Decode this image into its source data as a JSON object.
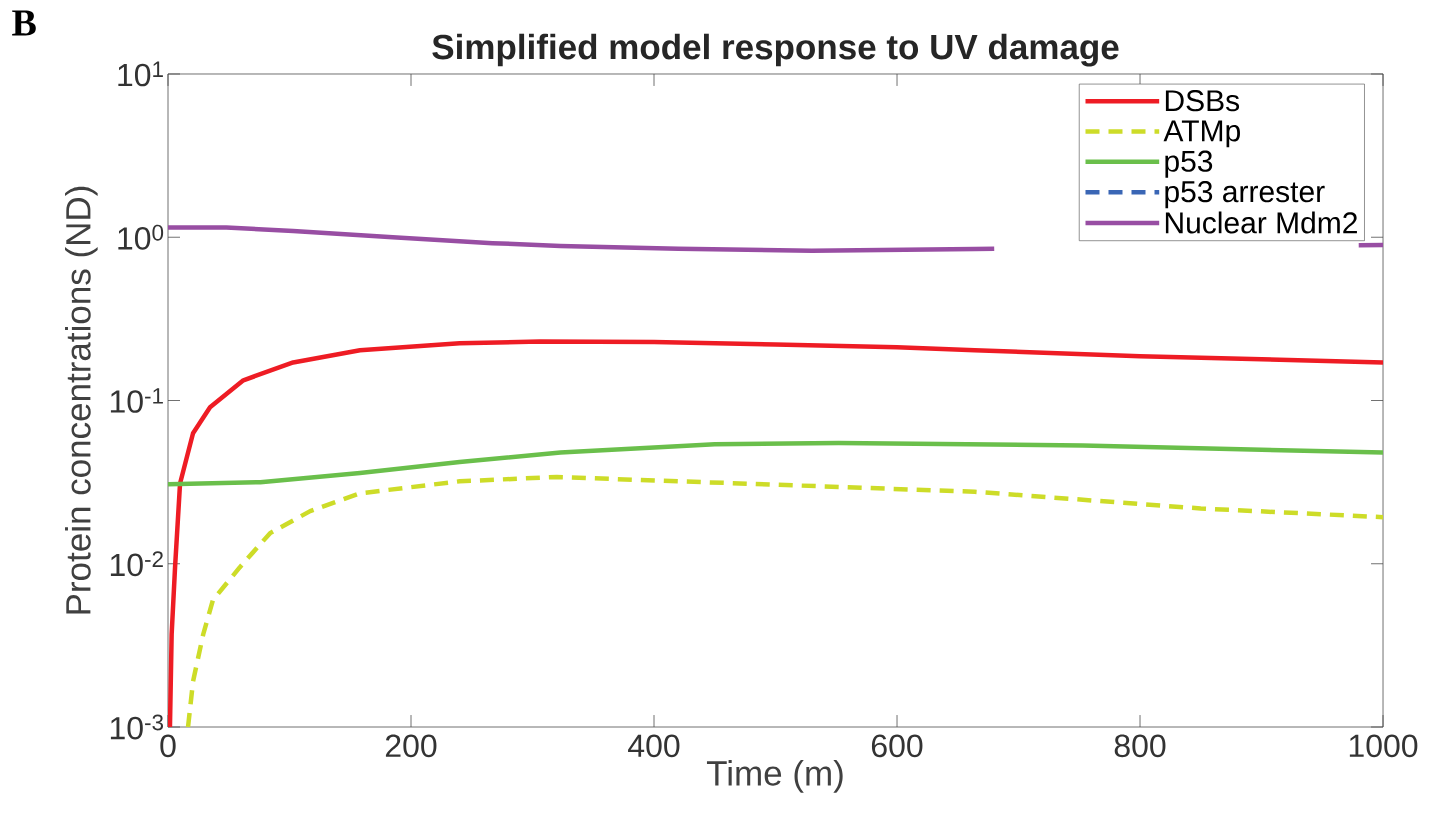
{
  "chart_data": {
    "type": "line",
    "title": "Simplified model response to UV damage",
    "xlabel": "Time (m)",
    "ylabel": "Protein concentrations (ND)",
    "annotations": [
      "B"
    ],
    "log": "y",
    "grid": false,
    "legend": "top right",
    "marker": "none",
    "xlim": [
      0,
      1000
    ],
    "xticks": [
      0,
      200,
      400,
      600,
      800,
      1000
    ],
    "ylim": [
      0.001,
      10
    ],
    "yticks": [
      {
        "value": 0.001,
        "label": "10$^{-3}$"
      },
      {
        "value": 0.01,
        "label": "10$^{-2}$"
      },
      {
        "value": 0.1,
        "label": "10$^{-1}$"
      },
      {
        "value": 1,
        "label": "10$^{0}$"
      },
      {
        "value": 10,
        "label": "10$^{1}$"
      }
    ],
    "series": [
      {
        "name": "DSBs",
        "color": "#ee1c24",
        "line_style": "solid",
        "x": [
          1.6,
          3,
          5.8,
          9.9,
          20.6,
          34.6,
          62,
          103,
          158,
          240,
          306,
          400,
          500,
          600,
          664,
          800,
          1000
        ],
        "values": [
          0.001,
          0.0037,
          0.0095,
          0.031,
          0.063,
          0.091,
          0.133,
          0.171,
          0.203,
          0.224,
          0.23,
          0.228,
          0.22,
          0.212,
          0.203,
          0.187,
          0.171
        ]
      },
      {
        "name": "ATMp",
        "color": "#cddc28",
        "line_style": "dashed",
        "x": [
          16.5,
          20.6,
          29,
          37,
          59,
          84,
          117,
          158,
          240,
          320,
          500,
          664,
          850,
          1000
        ],
        "values": [
          0.001,
          0.0019,
          0.0037,
          0.006,
          0.0095,
          0.0154,
          0.021,
          0.027,
          0.032,
          0.034,
          0.0305,
          0.0276,
          0.0218,
          0.0193
        ]
      },
      {
        "name": "p53",
        "color": "#6abf4b",
        "line_style": "solid",
        "x": [
          0,
          76,
          158,
          240,
          323,
          450,
          552,
          753,
          1000
        ],
        "values": [
          0.0307,
          0.0316,
          0.036,
          0.042,
          0.048,
          0.054,
          0.055,
          0.053,
          0.048
        ]
      },
      {
        "name": "p53 arrester",
        "color": "#3a66b5",
        "line_style": "dashed"
      },
      {
        "name": "Nuclear Mdm2",
        "color": "#984ea3",
        "line_style": "solid",
        "x": [
          0,
          48,
          103,
          185,
          267,
          323,
          420,
          530,
          664,
          680,
          750,
          980,
          1000
        ],
        "values": [
          1.147,
          1.147,
          1.093,
          1.0,
          0.92,
          0.885,
          0.85,
          0.828,
          0.846,
          0.85,
          null,
          0.893,
          0.895
        ]
      }
    ]
  }
}
